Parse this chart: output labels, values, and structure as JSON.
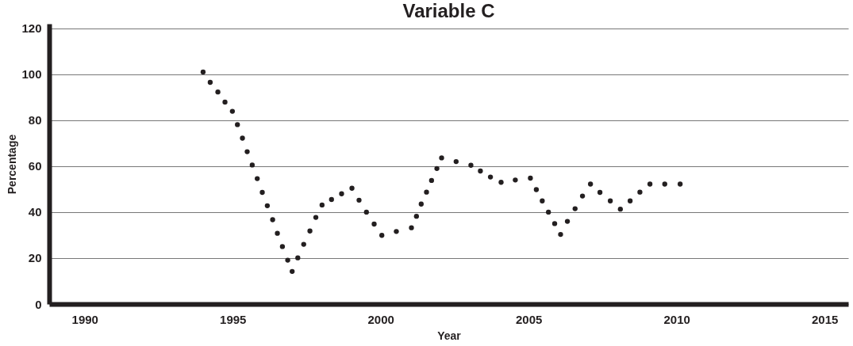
{
  "chart_data": {
    "type": "scatter",
    "title": "Variable C",
    "xlabel": "Year",
    "ylabel": "Percentage",
    "x": [
      1994.0,
      1994.24,
      1994.5,
      1994.74,
      1994.99,
      1995.16,
      1995.33,
      1995.49,
      1995.66,
      1995.83,
      1996.0,
      1996.17,
      1996.35,
      1996.51,
      1996.68,
      1996.86,
      1997.01,
      1997.2,
      1997.4,
      1997.61,
      1997.81,
      1998.02,
      1998.34,
      1998.68,
      1999.03,
      1999.27,
      1999.52,
      1999.78,
      2000.04,
      2000.53,
      2001.04,
      2001.21,
      2001.37,
      2001.55,
      2001.72,
      2001.9,
      2002.06,
      2002.55,
      2003.05,
      2003.37,
      2003.71,
      2004.07,
      2004.55,
      2005.06,
      2005.26,
      2005.46,
      2005.67,
      2005.88,
      2006.08,
      2006.31,
      2006.57,
      2006.82,
      2007.09,
      2007.41,
      2007.76,
      2008.1,
      2008.43,
      2008.76,
      2009.1,
      2009.6,
      2010.12
    ],
    "series": [
      {
        "color": "#231f20",
        "values": [
          101,
          96.5,
          92.3,
          87.9,
          83.9,
          78.1,
          72.2,
          66.3,
          60.5,
          54.6,
          48.6,
          42.8,
          36.7,
          30.8,
          25,
          19.1,
          14.2,
          20.1,
          26,
          31.8,
          37.7,
          43.1,
          45.5,
          48,
          50.4,
          45.2,
          40,
          34.8,
          29.9,
          31.6,
          33.2,
          38.2,
          43.5,
          48.7,
          53.8,
          59,
          63.6,
          62,
          60.4,
          57.9,
          55.3,
          53,
          54,
          54.8,
          49.8,
          44.9,
          40,
          35,
          30.3,
          36,
          41.5,
          47,
          52.2,
          48.6,
          44.9,
          41.3,
          44.9,
          48.7,
          52.2,
          52.2,
          52.2
        ]
      }
    ],
    "xlim": [
      1988.8,
      2015.8
    ],
    "xticks": [
      1990,
      1995,
      2000,
      2005,
      2010,
      2015
    ],
    "ylim": [
      0,
      122
    ],
    "yticks": [
      0,
      20,
      40,
      60,
      80,
      100,
      120
    ],
    "grid": "y",
    "marker": "circle"
  }
}
